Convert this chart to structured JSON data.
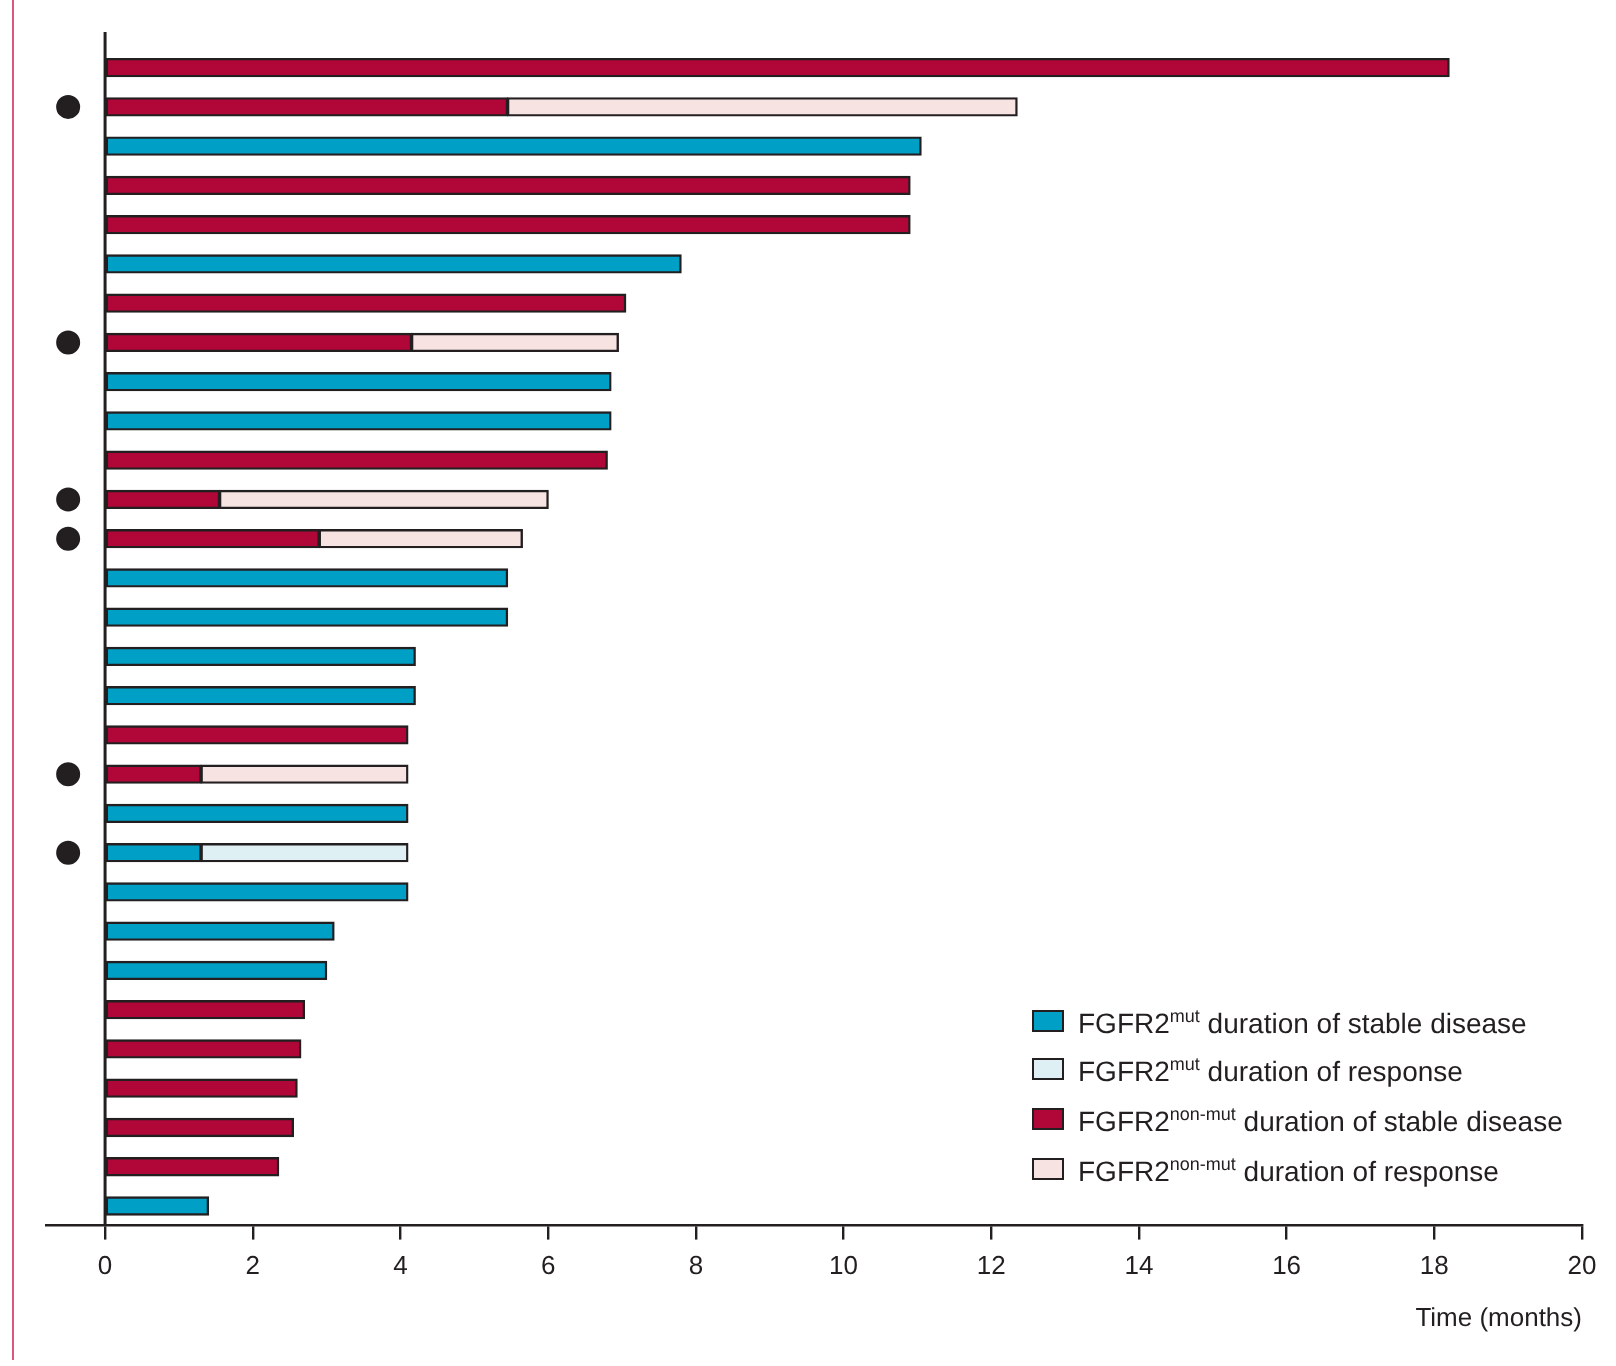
{
  "chart_data": {
    "type": "bar",
    "orientation": "horizontal",
    "stacked": true,
    "categories": [
      null,
      null,
      null,
      null,
      null,
      null,
      null,
      null,
      null,
      null,
      null,
      null,
      null,
      null,
      null,
      null,
      null,
      null,
      null,
      null,
      null,
      null,
      null,
      null,
      null,
      null,
      null,
      null,
      null,
      null
    ],
    "series": [
      {
        "name": "FGFR2$^{mut}$ duration of stable disease",
        "color": "#00a0c6",
        "values": [
          null,
          null,
          11.05,
          null,
          null,
          7.8,
          null,
          null,
          6.85,
          6.85,
          null,
          null,
          null,
          5.45,
          5.45,
          4.2,
          4.2,
          null,
          null,
          4.1,
          1.3,
          4.1,
          3.1,
          3.0,
          null,
          null,
          null,
          null,
          null,
          1.4
        ]
      },
      {
        "name": "FGFR2$^{mut}$ duration of response",
        "color": "#dff0f5",
        "values": [
          null,
          null,
          null,
          null,
          null,
          null,
          null,
          null,
          null,
          null,
          null,
          null,
          null,
          null,
          null,
          null,
          null,
          null,
          null,
          null,
          2.8,
          null,
          null,
          null,
          null,
          null,
          null,
          null,
          null,
          null
        ]
      },
      {
        "name": "FGFR2$^{non-mut}$ duration of stable disease",
        "color": "#b00638",
        "values": [
          18.2,
          5.45,
          null,
          10.9,
          10.9,
          null,
          7.05,
          4.15,
          null,
          null,
          6.8,
          1.55,
          2.9,
          null,
          null,
          null,
          null,
          4.1,
          1.3,
          null,
          null,
          null,
          null,
          null,
          2.7,
          2.65,
          2.6,
          2.55,
          2.35,
          null
        ]
      },
      {
        "name": "FGFR2$^{non-mut}$ duration of response",
        "color": "#f7e3e1",
        "values": [
          null,
          6.9,
          null,
          null,
          null,
          null,
          null,
          2.8,
          null,
          null,
          null,
          4.45,
          2.75,
          null,
          null,
          null,
          null,
          null,
          2.8,
          null,
          null,
          null,
          null,
          null,
          null,
          null,
          null,
          null,
          null,
          null
        ]
      },
      {
        "type": "scatter",
        "color": "#231f20",
        "marker": "circle",
        "values": [
          null,
          -0.5,
          null,
          null,
          null,
          null,
          null,
          -0.5,
          null,
          null,
          null,
          -0.5,
          -0.5,
          null,
          null,
          null,
          null,
          null,
          -0.5,
          null,
          -0.5,
          null,
          null,
          null,
          null,
          null,
          null,
          null,
          null,
          null
        ]
      }
    ],
    "xlabel": "Time (months)",
    "xlim": [
      -0.8,
      20
    ],
    "xticks": [
      0,
      2,
      4,
      6,
      8,
      10,
      12,
      14,
      16,
      18,
      20
    ],
    "ref_lines": [
      {
        "axis": "x",
        "value": 0,
        "color": "#231f20"
      }
    ],
    "grid": false,
    "legend": "bottom right",
    "tick_labels": "x"
  }
}
